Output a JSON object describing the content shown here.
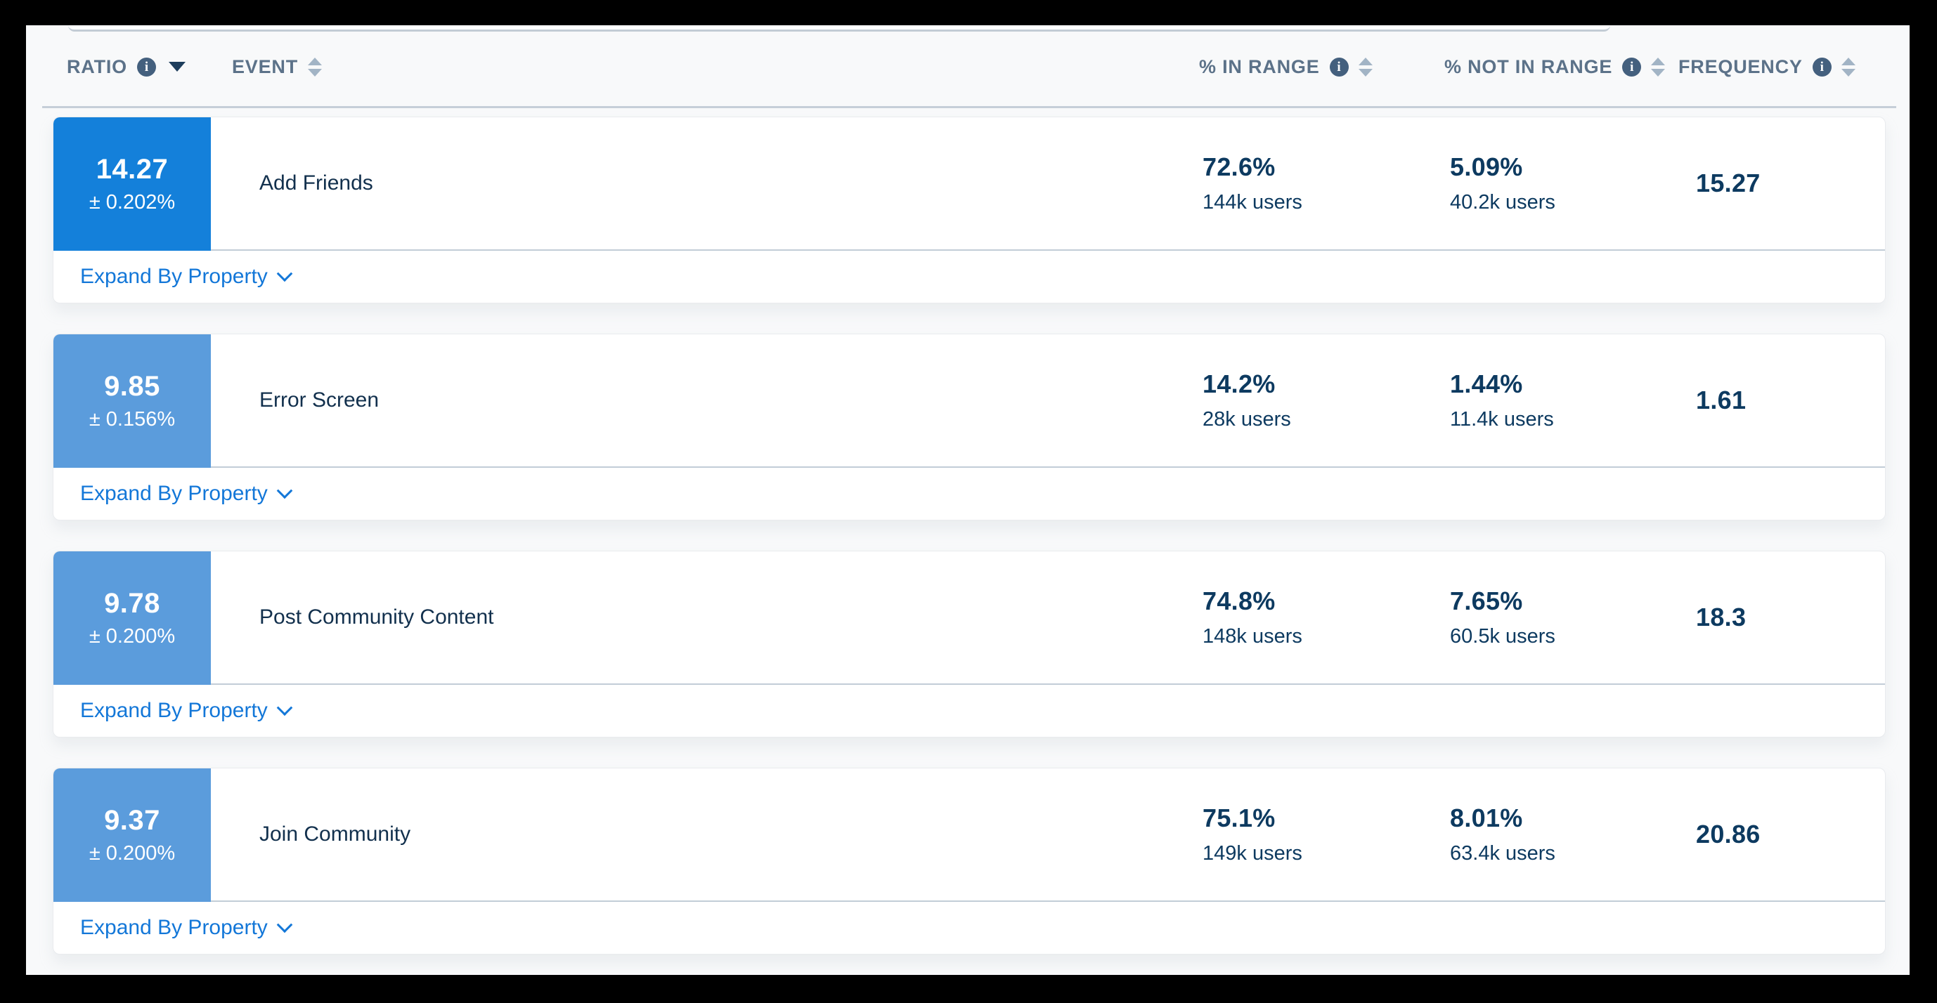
{
  "table": {
    "columns": [
      {
        "label": "RATIO",
        "has_info": true,
        "sort": "desc"
      },
      {
        "label": "EVENT",
        "has_info": false,
        "sort": "both"
      },
      {
        "label": "% IN RANGE",
        "has_info": true,
        "sort": "both"
      },
      {
        "label": "% NOT IN RANGE",
        "has_info": true,
        "sort": "both"
      },
      {
        "label": "FREQUENCY",
        "has_info": true,
        "sort": "both"
      }
    ],
    "rows": [
      {
        "ratio": "14.27",
        "ratio_error": "± 0.202%",
        "event": "Add Friends",
        "in_range_pct": "72.6%",
        "in_range_users": "144k users",
        "not_in_range_pct": "5.09%",
        "not_in_range_users": "40.2k users",
        "frequency": "15.27",
        "badge_color": "#1480da",
        "expand_label": "Expand By Property"
      },
      {
        "ratio": "9.85",
        "ratio_error": "± 0.156%",
        "event": "Error Screen",
        "in_range_pct": "14.2%",
        "in_range_users": "28k users",
        "not_in_range_pct": "1.44%",
        "not_in_range_users": "11.4k users",
        "frequency": "1.61",
        "badge_color": "#5b9cdc",
        "expand_label": "Expand By Property"
      },
      {
        "ratio": "9.78",
        "ratio_error": "± 0.200%",
        "event": "Post Community Content",
        "in_range_pct": "74.8%",
        "in_range_users": "148k users",
        "not_in_range_pct": "7.65%",
        "not_in_range_users": "60.5k users",
        "frequency": "18.3",
        "expand_label": "Expand By Property",
        "badge_color": "#5b9cdc"
      },
      {
        "ratio": "9.37",
        "ratio_error": "± 0.200%",
        "event": "Join Community",
        "in_range_pct": "75.1%",
        "in_range_users": "149k users",
        "not_in_range_pct": "8.01%",
        "not_in_range_users": "63.4k users",
        "frequency": "20.86",
        "expand_label": "Expand By Property",
        "badge_color": "#5b9cdc"
      }
    ]
  },
  "colors": {
    "badge_primary": "#1480da",
    "badge_secondary": "#5b9cdc",
    "link_blue": "#1377d8",
    "value_navy": "#0d3a60",
    "header_slate": "#5c7289"
  }
}
